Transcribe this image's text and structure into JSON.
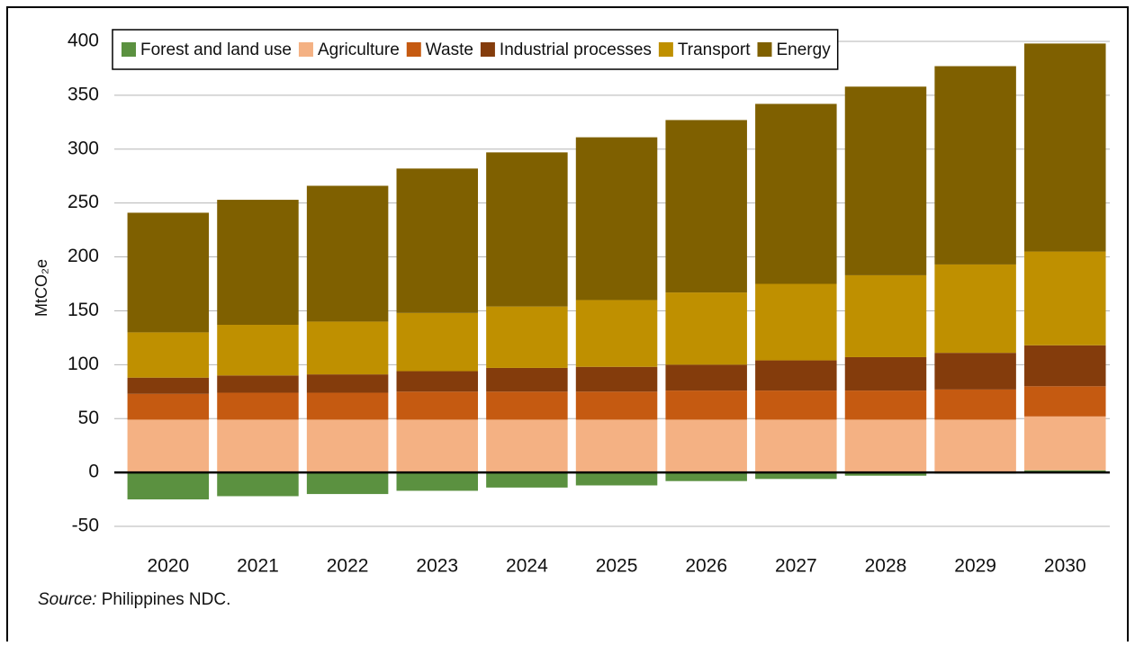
{
  "chart_data": {
    "type": "stacked_bar",
    "y_label": "MtCO₂e",
    "source_label": "Source:",
    "source": " Philippines NDC.",
    "categories": [
      "2020",
      "2021",
      "2022",
      "2023",
      "2024",
      "2025",
      "2026",
      "2027",
      "2028",
      "2029",
      "2030"
    ],
    "series": [
      {
        "name": "Forest and land use",
        "color": "#5b9140",
        "values": [
          -25,
          -22,
          -20,
          -17,
          -14,
          -12,
          -8,
          -6,
          -3,
          -1,
          2
        ]
      },
      {
        "name": "Agriculture",
        "color": "#f4b183",
        "values": [
          49,
          49,
          49,
          49,
          49,
          49,
          49,
          49,
          49,
          49,
          50
        ]
      },
      {
        "name": "Waste",
        "color": "#c55a11",
        "values": [
          24,
          25,
          25,
          26,
          26,
          26,
          27,
          27,
          27,
          28,
          28
        ]
      },
      {
        "name": "Industrial processes",
        "color": "#843c0c",
        "values": [
          15,
          16,
          17,
          19,
          22,
          23,
          24,
          28,
          31,
          34,
          38
        ]
      },
      {
        "name": "Transport",
        "color": "#bf9000",
        "values": [
          42,
          47,
          49,
          54,
          57,
          62,
          67,
          71,
          76,
          82,
          87
        ]
      },
      {
        "name": "Energy",
        "color": "#7f6000",
        "values": [
          111,
          116,
          126,
          134,
          143,
          151,
          160,
          167,
          175,
          184,
          193
        ]
      }
    ],
    "ylim": [
      -60,
      410
    ],
    "yticks": [
      -50,
      0,
      50,
      100,
      150,
      200,
      250,
      300,
      350,
      400
    ],
    "grid": true,
    "legend": "top-left"
  }
}
